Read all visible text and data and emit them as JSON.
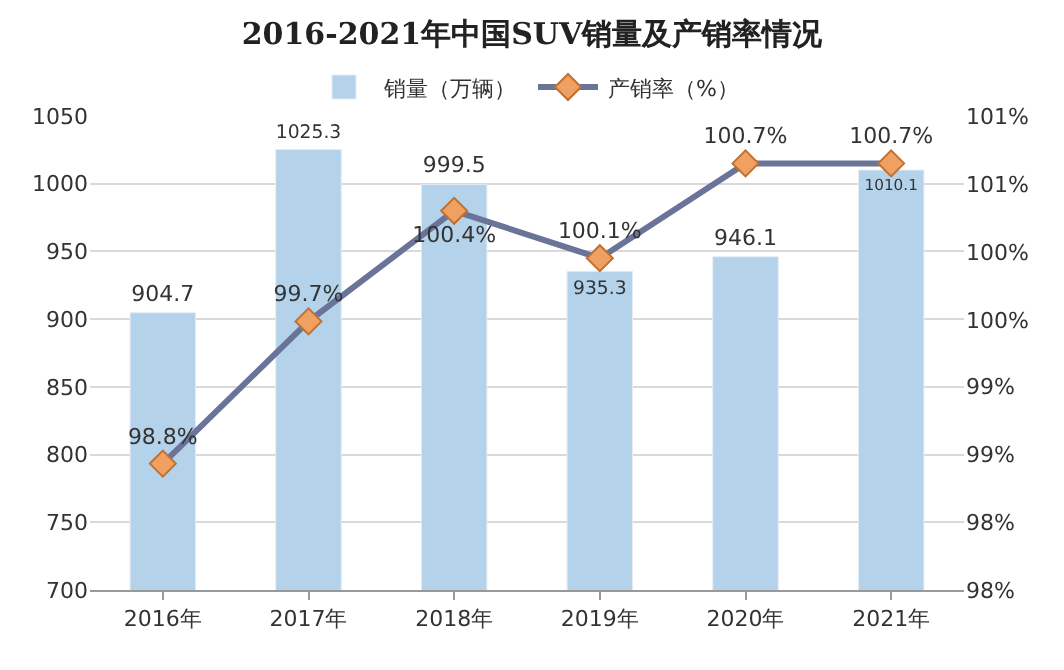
{
  "chart_data": {
    "type": "bar",
    "title": "2016-2021年中国SUV销量及产销率情况",
    "categories": [
      "2016年",
      "2017年",
      "2018年",
      "2019年",
      "2020年",
      "2021年"
    ],
    "series": [
      {
        "name": "销量（万辆）",
        "color": "#b4d3ea",
        "values": [
          904.7,
          1025.3,
          999.5,
          935.3,
          946.1,
          1010.1
        ],
        "value_labels": [
          "904.7",
          "1025.3",
          "999.5",
          "935.3",
          "946.1",
          "1010.1"
        ]
      },
      {
        "name": "产销率（%）",
        "type": "line",
        "axis": "y2",
        "color": "#6a7499",
        "values": [
          98.8,
          99.7,
          100.4,
          100.1,
          100.7,
          100.7
        ],
        "value_labels": [
          "98.8%",
          "99.7%",
          "100.4%",
          "100.1%",
          "100.7%",
          "100.7%"
        ]
      }
    ],
    "ylim": [
      700,
      1050
    ],
    "yticks": [
      700,
      750,
      800,
      850,
      900,
      950,
      1000,
      1050
    ],
    "y2lim": [
      98,
      101
    ],
    "y2ticks": [
      {
        "value": 98,
        "label": "98%"
      },
      {
        "value": 98.43,
        "label": "98%"
      },
      {
        "value": 98.86,
        "label": "99%"
      },
      {
        "value": 99.29,
        "label": "99%"
      },
      {
        "value": 99.71,
        "label": "100%"
      },
      {
        "value": 100.14,
        "label": "100%"
      },
      {
        "value": 100.57,
        "label": "101%"
      },
      {
        "value": 101,
        "label": "101%"
      }
    ],
    "grid": "y",
    "legend": "top",
    "marker": "diamond",
    "line_style": "solid"
  }
}
